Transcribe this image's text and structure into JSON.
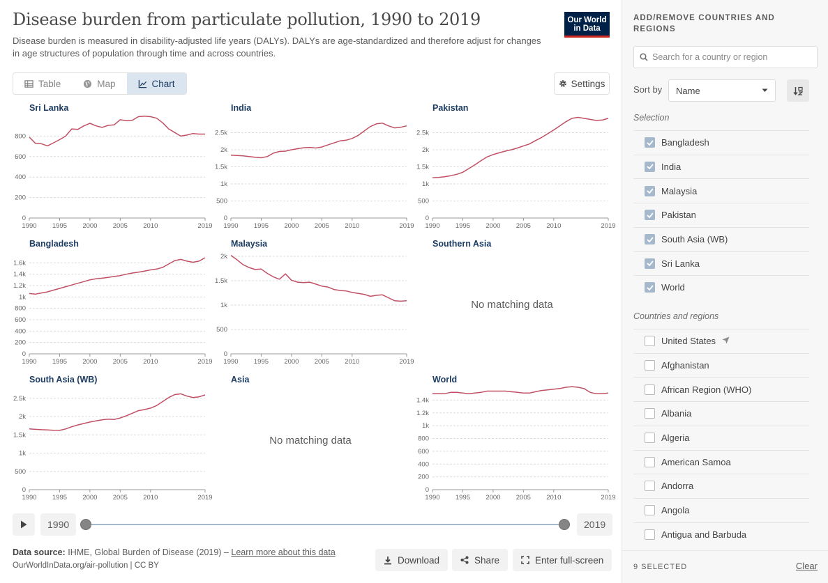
{
  "header": {
    "title": "Disease burden from particulate pollution, 1990 to 2019",
    "subtitle": "Disease burden is measured in disability-adjusted life years (DALYs). DALYs are age-standardized and therefore adjust for changes in age structures of population through time and across countries.",
    "logo_line1": "Our World",
    "logo_line2": "in Data"
  },
  "tabs": [
    {
      "label": "Table",
      "icon": "table-icon",
      "active": false
    },
    {
      "label": "Map",
      "icon": "globe-icon",
      "active": false
    },
    {
      "label": "Chart",
      "icon": "line-chart-icon",
      "active": true
    }
  ],
  "settings_label": "Settings",
  "no_data_text": "No matching data",
  "timeline": {
    "start": "1990",
    "end": "2019",
    "play_icon": "play-icon",
    "start_fraction": 0,
    "end_fraction": 1
  },
  "footer": {
    "source_label": "Data source:",
    "source_text": "IHME, Global Burden of Disease (2019) –",
    "learn_more": "Learn more about this data",
    "url": "OurWorldInData.org/air-pollution | CC BY",
    "download": "Download",
    "share": "Share",
    "fullscreen": "Enter full-screen"
  },
  "sidebar": {
    "heading": "ADD/REMOVE COUNTRIES AND REGIONS",
    "search_placeholder": "Search for a country or region",
    "sort_label": "Sort by",
    "sort_value": "Name",
    "selection_label": "Selection",
    "selected": [
      "Bangladesh",
      "India",
      "Malaysia",
      "Pakistan",
      "South Asia (WB)",
      "Sri Lanka",
      "World"
    ],
    "countries_label": "Countries and regions",
    "countries": [
      "United States",
      "Afghanistan",
      "African Region (WHO)",
      "Albania",
      "Algeria",
      "American Samoa",
      "Andorra",
      "Angola",
      "Antigua and Barbuda"
    ],
    "selected_count": "9 SELECTED",
    "clear": "Clear"
  },
  "chart_data": {
    "type": "line",
    "line_color": "#c15065",
    "x_ticks": [
      1990,
      1995,
      2000,
      2005,
      2010,
      2019
    ],
    "years": [
      1990,
      1991,
      1992,
      1993,
      1994,
      1995,
      1996,
      1997,
      1998,
      1999,
      2000,
      2001,
      2002,
      2003,
      2004,
      2005,
      2006,
      2007,
      2008,
      2009,
      2010,
      2011,
      2012,
      2013,
      2014,
      2015,
      2016,
      2017,
      2018,
      2019
    ],
    "panels": [
      {
        "name": "Sri Lanka",
        "ylim": [
          0,
          1000
        ],
        "yticks": [
          0,
          200,
          400,
          600,
          800
        ],
        "ytick_labels": [
          "0",
          "200",
          "400",
          "600",
          "800"
        ],
        "values": [
          790,
          730,
          725,
          705,
          735,
          765,
          800,
          870,
          865,
          900,
          925,
          900,
          885,
          905,
          910,
          960,
          950,
          955,
          990,
          995,
          990,
          975,
          930,
          870,
          835,
          800,
          810,
          825,
          820,
          820
        ]
      },
      {
        "name": "India",
        "ylim": [
          0,
          3000
        ],
        "yticks": [
          0,
          500,
          1000,
          1500,
          2000,
          2500
        ],
        "ytick_labels": [
          "0",
          "500",
          "1k",
          "1.5k",
          "2k",
          "2.5k"
        ],
        "values": [
          1840,
          1830,
          1820,
          1800,
          1780,
          1765,
          1800,
          1900,
          1950,
          1960,
          2000,
          2030,
          2060,
          2070,
          2050,
          2080,
          2140,
          2200,
          2260,
          2280,
          2330,
          2420,
          2550,
          2680,
          2760,
          2780,
          2700,
          2640,
          2660,
          2700
        ]
      },
      {
        "name": "Pakistan",
        "ylim": [
          0,
          3000
        ],
        "yticks": [
          0,
          500,
          1000,
          1500,
          2000,
          2500
        ],
        "ytick_labels": [
          "0",
          "500",
          "1k",
          "1.5k",
          "2k",
          "2.5k"
        ],
        "values": [
          1180,
          1190,
          1210,
          1240,
          1280,
          1340,
          1450,
          1560,
          1680,
          1790,
          1860,
          1910,
          1960,
          2000,
          2050,
          2110,
          2170,
          2270,
          2360,
          2470,
          2580,
          2700,
          2820,
          2920,
          2950,
          2920,
          2890,
          2860,
          2870,
          2920
        ]
      },
      {
        "name": "Bangladesh",
        "ylim": [
          0,
          1800
        ],
        "yticks": [
          0,
          200,
          400,
          600,
          800,
          1000,
          1200,
          1400,
          1600
        ],
        "ytick_labels": [
          "0",
          "200",
          "400",
          "600",
          "800",
          "1k",
          "1.2k",
          "1.4k",
          "1.6k"
        ],
        "values": [
          1060,
          1050,
          1070,
          1090,
          1120,
          1150,
          1180,
          1210,
          1240,
          1270,
          1300,
          1320,
          1330,
          1345,
          1360,
          1375,
          1400,
          1420,
          1435,
          1455,
          1475,
          1490,
          1520,
          1580,
          1640,
          1660,
          1630,
          1610,
          1630,
          1690
        ]
      },
      {
        "name": "Malaysia",
        "ylim": [
          0,
          2100
        ],
        "yticks": [
          0,
          500,
          1000,
          1500,
          2000
        ],
        "ytick_labels": [
          "0",
          "500",
          "1k",
          "1.5k",
          "2k"
        ],
        "values": [
          2020,
          1930,
          1830,
          1770,
          1730,
          1740,
          1650,
          1580,
          1530,
          1640,
          1510,
          1470,
          1460,
          1470,
          1430,
          1390,
          1370,
          1320,
          1300,
          1290,
          1260,
          1240,
          1220,
          1180,
          1200,
          1210,
          1150,
          1090,
          1080,
          1090
        ]
      },
      {
        "name": "Southern Asia",
        "nodata": true
      },
      {
        "name": "South Asia (WB)",
        "ylim": [
          0,
          2800
        ],
        "yticks": [
          0,
          500,
          1000,
          1500,
          2000,
          2500
        ],
        "ytick_labels": [
          "0",
          "500",
          "1k",
          "1.5k",
          "2k",
          "2.5k"
        ],
        "values": [
          1660,
          1650,
          1640,
          1635,
          1625,
          1620,
          1660,
          1720,
          1770,
          1810,
          1850,
          1880,
          1910,
          1930,
          1920,
          1960,
          2020,
          2090,
          2160,
          2190,
          2230,
          2300,
          2410,
          2520,
          2600,
          2620,
          2560,
          2520,
          2540,
          2590
        ]
      },
      {
        "name": "Asia",
        "nodata": true
      },
      {
        "name": "World",
        "ylim": [
          0,
          1600
        ],
        "yticks": [
          0,
          200,
          400,
          600,
          800,
          1000,
          1200,
          1400
        ],
        "ytick_labels": [
          "0",
          "200",
          "400",
          "600",
          "800",
          "1k",
          "1.2k",
          "1.4k"
        ],
        "values": [
          1500,
          1500,
          1500,
          1520,
          1520,
          1510,
          1500,
          1510,
          1520,
          1540,
          1540,
          1540,
          1540,
          1530,
          1520,
          1510,
          1510,
          1530,
          1550,
          1560,
          1570,
          1580,
          1600,
          1610,
          1600,
          1580,
          1520,
          1500,
          1500,
          1510
        ]
      }
    ]
  }
}
